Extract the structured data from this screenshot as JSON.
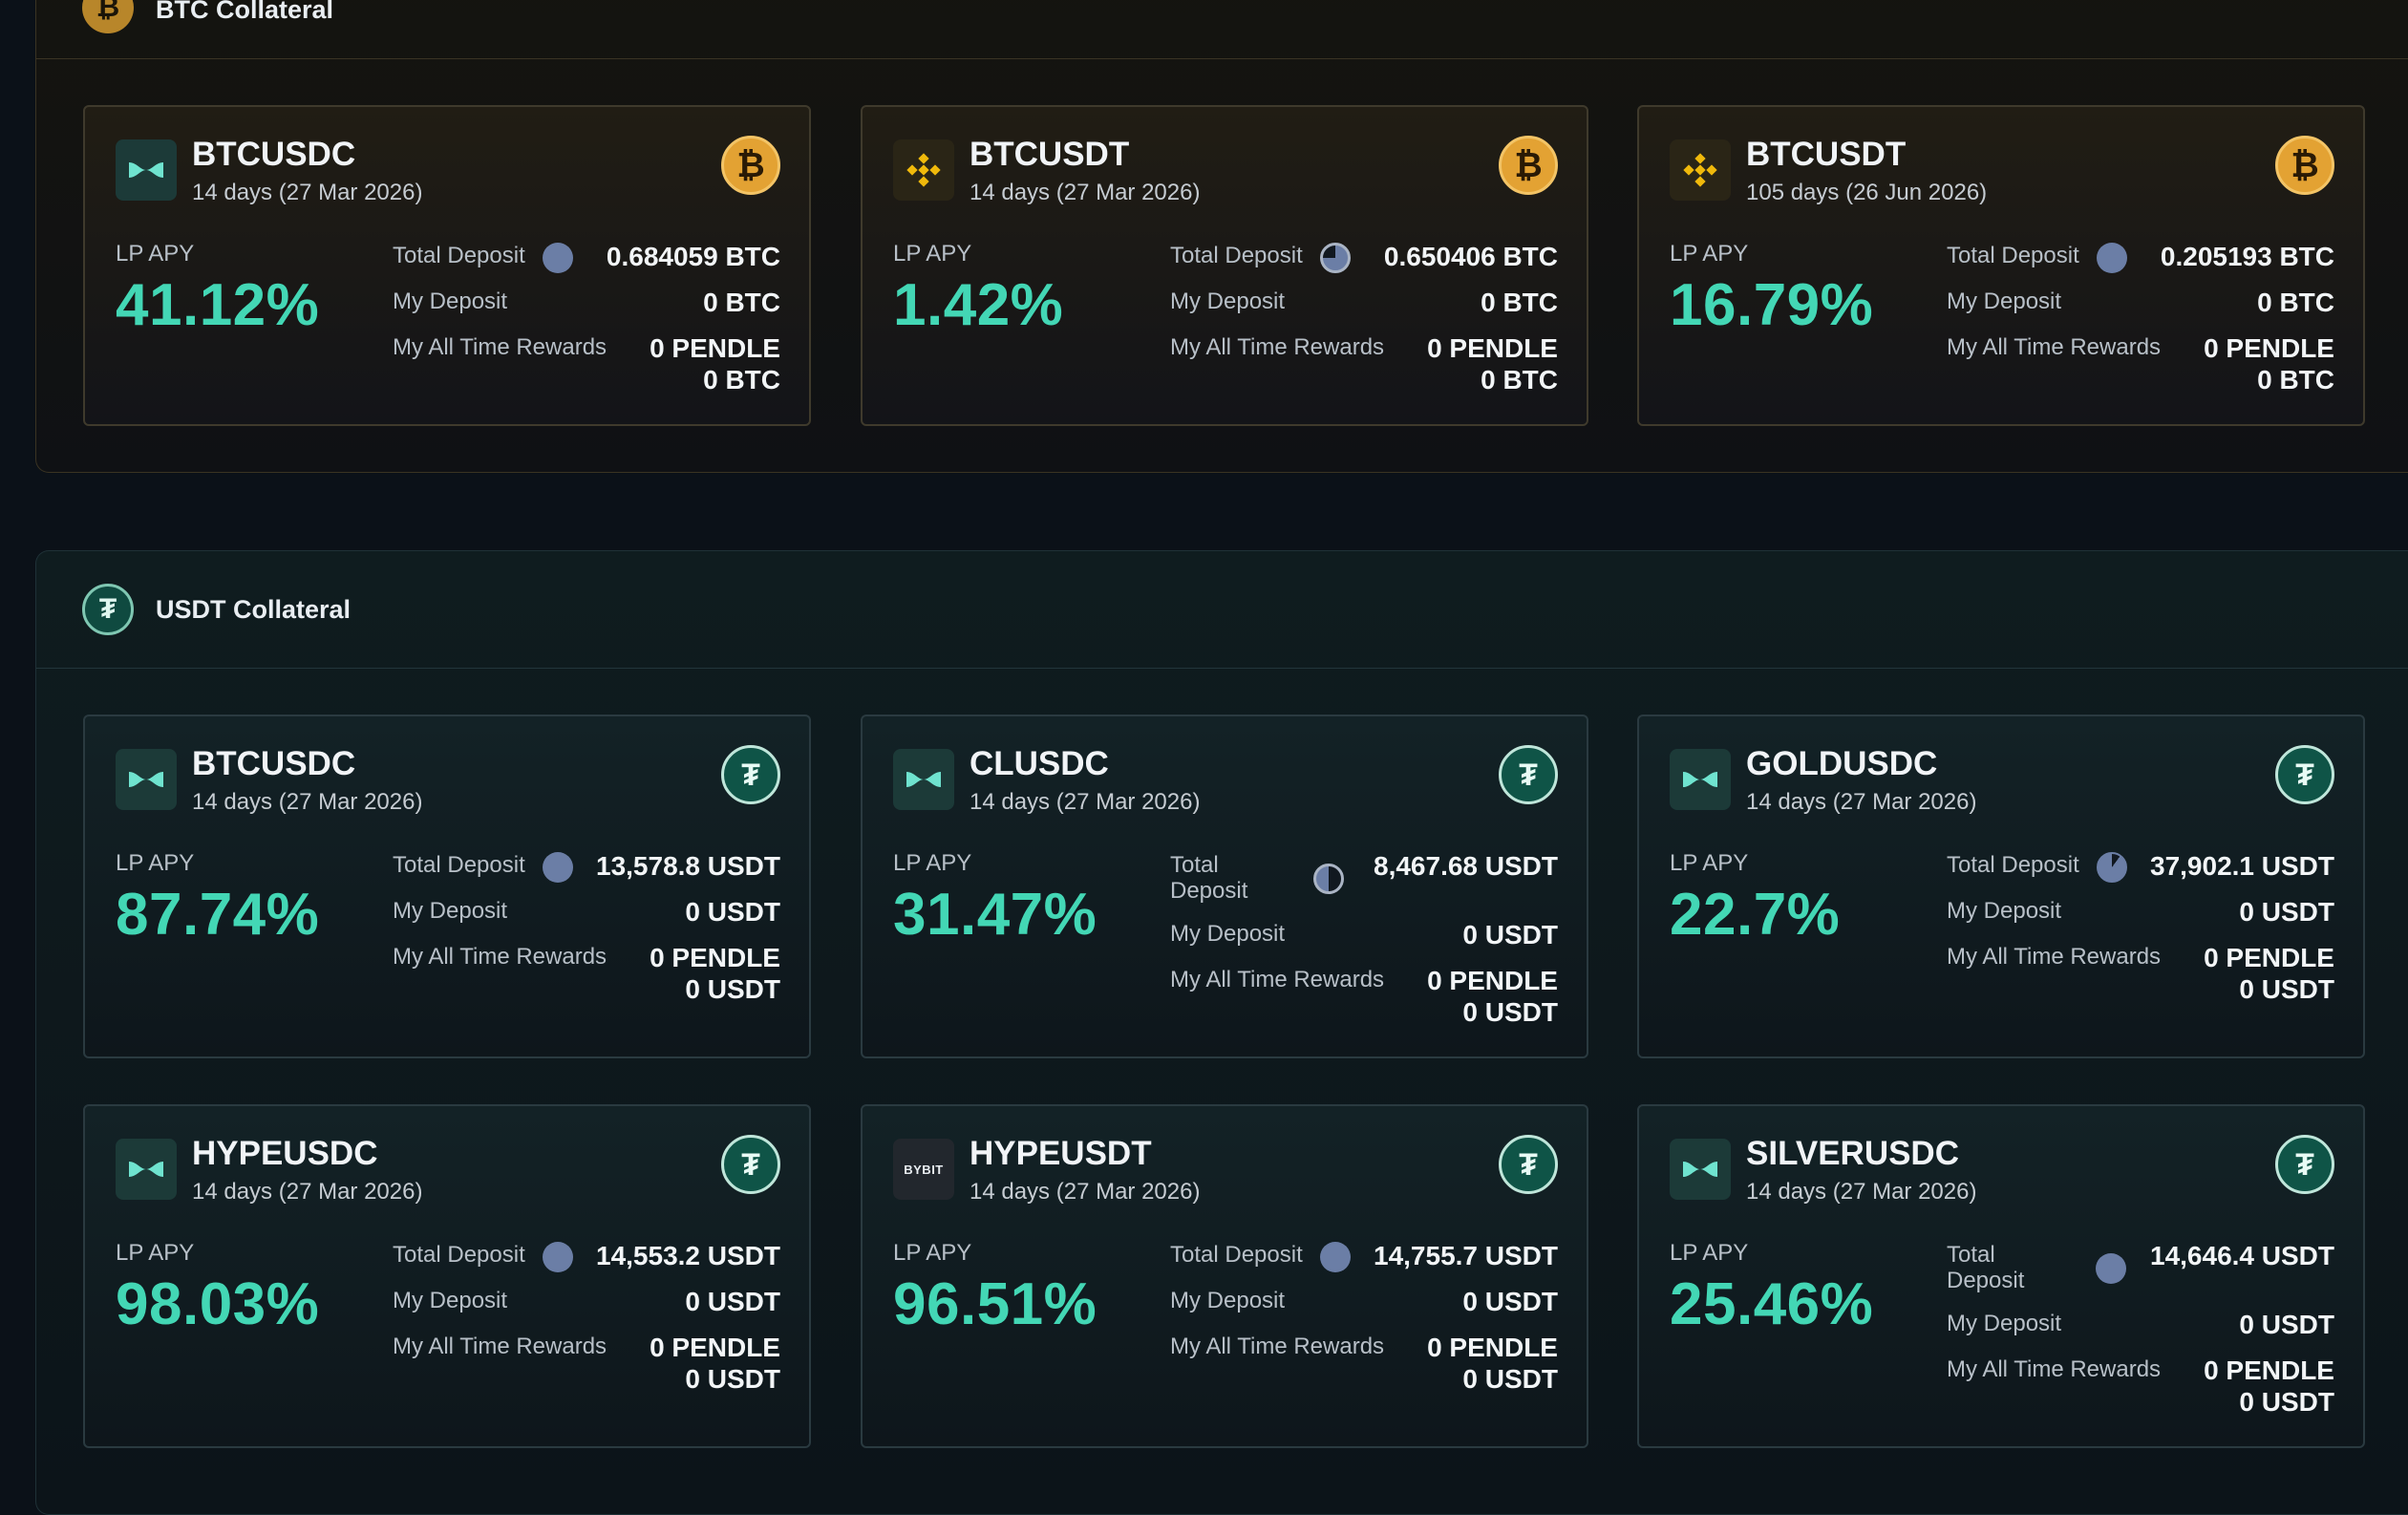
{
  "colors": {
    "apy": "#43d7b5",
    "btc": "#e3a233",
    "usdt": "#0f5447"
  },
  "btc_section": {
    "title": "BTC Collateral",
    "icon": "bitcoin-icon",
    "cards": [
      {
        "pair": "BTCUSDC",
        "term": "14 days (27 Mar 2026)",
        "exchange_icon": "pendle-icon",
        "coin_icon": "bitcoin-icon",
        "apy_label": "LP APY",
        "apy": "41.12%",
        "total_deposit_label": "Total Deposit",
        "total_deposit": "0.684059 BTC",
        "my_deposit_label": "My Deposit",
        "my_deposit": "0 BTC",
        "rewards_label": "My All Time Rewards",
        "rewards_pendle": "0 PENDLE",
        "rewards_asset": "0 BTC"
      },
      {
        "pair": "BTCUSDT",
        "term": "14 days (27 Mar 2026)",
        "exchange_icon": "binance-icon",
        "coin_icon": "bitcoin-icon",
        "apy_label": "LP APY",
        "apy": "1.42%",
        "total_deposit_label": "Total Deposit",
        "total_deposit": "0.650406 BTC",
        "my_deposit_label": "My Deposit",
        "my_deposit": "0 BTC",
        "rewards_label": "My All Time Rewards",
        "rewards_pendle": "0 PENDLE",
        "rewards_asset": "0 BTC"
      },
      {
        "pair": "BTCUSDT",
        "term": "105 days (26 Jun 2026)",
        "exchange_icon": "binance-icon",
        "coin_icon": "bitcoin-icon",
        "apy_label": "LP APY",
        "apy": "16.79%",
        "total_deposit_label": "Total Deposit",
        "total_deposit": "0.205193 BTC",
        "my_deposit_label": "My Deposit",
        "my_deposit": "0 BTC",
        "rewards_label": "My All Time Rewards",
        "rewards_pendle": "0 PENDLE",
        "rewards_asset": "0 BTC"
      }
    ]
  },
  "usdt_section": {
    "title": "USDT Collateral",
    "icon": "tether-icon",
    "cards": [
      {
        "pair": "BTCUSDC",
        "term": "14 days (27 Mar 2026)",
        "exchange_icon": "pendle-icon",
        "coin_icon": "tether-icon",
        "apy_label": "LP APY",
        "apy": "87.74%",
        "total_deposit_label": "Total Deposit",
        "total_deposit": "13,578.8 USDT",
        "my_deposit_label": "My Deposit",
        "my_deposit": "0 USDT",
        "rewards_label": "My All Time Rewards",
        "rewards_pendle": "0 PENDLE",
        "rewards_asset": "0 USDT"
      },
      {
        "pair": "CLUSDC",
        "term": "14 days (27 Mar 2026)",
        "exchange_icon": "pendle-icon",
        "coin_icon": "tether-icon",
        "apy_label": "LP APY",
        "apy": "31.47%",
        "total_deposit_label": "Total Deposit",
        "total_deposit": "8,467.68 USDT",
        "my_deposit_label": "My Deposit",
        "my_deposit": "0 USDT",
        "rewards_label": "My All Time Rewards",
        "rewards_pendle": "0 PENDLE",
        "rewards_asset": "0 USDT"
      },
      {
        "pair": "GOLDUSDC",
        "term": "14 days (27 Mar 2026)",
        "exchange_icon": "pendle-icon",
        "coin_icon": "tether-icon",
        "apy_label": "LP APY",
        "apy": "22.7%",
        "total_deposit_label": "Total Deposit",
        "total_deposit": "37,902.1 USDT",
        "my_deposit_label": "My Deposit",
        "my_deposit": "0 USDT",
        "rewards_label": "My All Time Rewards",
        "rewards_pendle": "0 PENDLE",
        "rewards_asset": "0 USDT"
      },
      {
        "pair": "HYPEUSDC",
        "term": "14 days (27 Mar 2026)",
        "exchange_icon": "pendle-icon",
        "coin_icon": "tether-icon",
        "apy_label": "LP APY",
        "apy": "98.03%",
        "total_deposit_label": "Total Deposit",
        "total_deposit": "14,553.2 USDT",
        "my_deposit_label": "My Deposit",
        "my_deposit": "0 USDT",
        "rewards_label": "My All Time Rewards",
        "rewards_pendle": "0 PENDLE",
        "rewards_asset": "0 USDT"
      },
      {
        "pair": "HYPEUSDT",
        "term": "14 days (27 Mar 2026)",
        "exchange_icon": "bybit-icon",
        "exchange_text": "BYBIT",
        "coin_icon": "tether-icon",
        "apy_label": "LP APY",
        "apy": "96.51%",
        "total_deposit_label": "Total Deposit",
        "total_deposit": "14,755.7 USDT",
        "my_deposit_label": "My Deposit",
        "my_deposit": "0 USDT",
        "rewards_label": "My All Time Rewards",
        "rewards_pendle": "0 PENDLE",
        "rewards_asset": "0 USDT"
      },
      {
        "pair": "SILVERUSDC",
        "term": "14 days (27 Mar 2026)",
        "exchange_icon": "pendle-icon",
        "coin_icon": "tether-icon",
        "apy_label": "LP APY",
        "apy": "25.46%",
        "total_deposit_label": "Total Deposit",
        "total_deposit": "14,646.4 USDT",
        "my_deposit_label": "My Deposit",
        "my_deposit": "0 USDT",
        "rewards_label": "My All Time Rewards",
        "rewards_pendle": "0 PENDLE",
        "rewards_asset": "0 USDT"
      }
    ]
  }
}
